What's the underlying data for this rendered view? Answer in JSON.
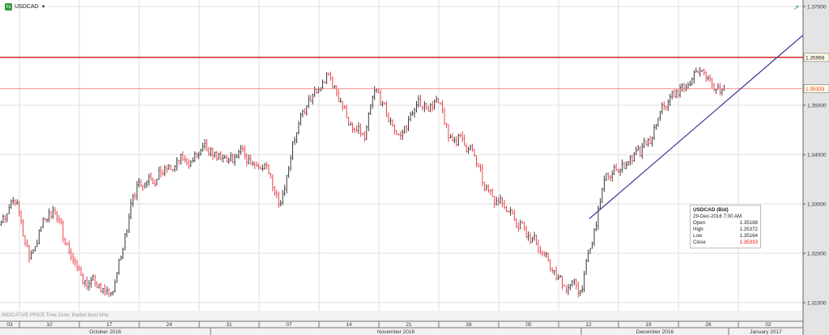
{
  "header": {
    "symbol": "USDCAD",
    "symbol_icon": "fx-icon",
    "menu_icon": "caret-down-icon"
  },
  "footer_note": "INDICATIVE PRICE   Time Zone: Market local time",
  "tooltip": {
    "title": "USDCAD (Bid)",
    "datetime": "29-Dec-2016 7:00 AM",
    "rows": [
      {
        "label": "Open",
        "value": "1.35188"
      },
      {
        "label": "High",
        "value": "1.35372"
      },
      {
        "label": "Low",
        "value": "1.35164"
      },
      {
        "label": "Close",
        "value": "1.35333"
      }
    ]
  },
  "colors": {
    "up": "#222222",
    "down": "#e8303a",
    "resistance": "#d01010",
    "last": "#f08080",
    "trend": "#4040a0",
    "grid": "#dddddd"
  },
  "chart_data": {
    "type": "bar (OHLC)",
    "title": "USDCAD",
    "ylim": [
      1.3075,
      1.3713
    ],
    "y_ticks": [
      "1.37000",
      "1.35000",
      "1.34000",
      "1.33000",
      "1.32000",
      "1.31000"
    ],
    "x_week_ticks": [
      "03",
      "10",
      "17",
      "24",
      "31",
      "07",
      "14",
      "21",
      "28",
      "05",
      "12",
      "19",
      "26",
      "02"
    ],
    "months": [
      "October 2016",
      "November 2016",
      "December 2016",
      "January 2017"
    ],
    "markers": [
      {
        "label": "1.35968",
        "value": 1.35968,
        "style": "resistance"
      },
      {
        "label": "1.35333",
        "value": 1.35333,
        "style": "last"
      }
    ],
    "trendline": {
      "from": {
        "date": "2016-12-14",
        "value": 1.327
      },
      "to": {
        "date": "2017-01-02",
        "value": 1.3642
      }
    },
    "daily_close": {
      "start_date": "2016-10-06",
      "values": [
        1.327,
        1.3303,
        1.3189,
        1.3254,
        1.3287,
        1.3221,
        1.3172,
        1.3139,
        1.3123,
        1.3123,
        1.3238,
        1.3339,
        1.3356,
        1.3362,
        1.3369,
        1.3389,
        1.3398,
        1.3402,
        1.3392,
        1.3385,
        1.3398,
        1.3377,
        1.3361,
        1.3303,
        1.3426,
        1.3484,
        1.3525,
        1.3562,
        1.3508,
        1.3451,
        1.3431,
        1.3533,
        1.3467,
        1.3438,
        1.3484,
        1.3503,
        1.3513,
        1.3434,
        1.3438,
        1.341,
        1.3328,
        1.3307,
        1.3284,
        1.3262,
        1.323,
        1.3197,
        1.3148,
        1.3131,
        1.3123,
        1.3221,
        1.3349,
        1.3369,
        1.3385,
        1.3398,
        1.3434,
        1.3497,
        1.353,
        1.3541,
        1.3569,
        1.3541,
        1.35333
      ]
    }
  }
}
